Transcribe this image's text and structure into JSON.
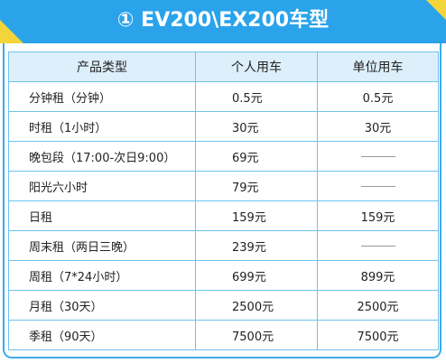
{
  "header": {
    "title": "① EV200\\EX200车型"
  },
  "table": {
    "columns": [
      "产品类型",
      "个人用车",
      "单位用车"
    ],
    "rows": [
      {
        "name": "分钟租（分钟）",
        "personal": "0.5元",
        "company": "0.5元"
      },
      {
        "name": "时租（1小时）",
        "personal": "30元",
        "company": "30元"
      },
      {
        "name": "晚包段（17:00-次日9:00）",
        "personal": "69元",
        "company": "——"
      },
      {
        "name": "阳光六小时",
        "personal": "79元",
        "company": "——"
      },
      {
        "name": "日租",
        "personal": "159元",
        "company": "159元"
      },
      {
        "name": "周末租（两日三晚）",
        "personal": "239元",
        "company": "——"
      },
      {
        "name": "周租（7*24小时）",
        "personal": "699元",
        "company": "899元"
      },
      {
        "name": "月租（30天）",
        "personal": "2500元",
        "company": "2500元"
      },
      {
        "name": "季租（90天）",
        "personal": "7500元",
        "company": "7500元"
      }
    ]
  },
  "colors": {
    "banner": "#2aa3ea",
    "accent_yellow": "#f3d53a",
    "header_row": "#dceffb",
    "grid_line": "#6fc2ef"
  }
}
